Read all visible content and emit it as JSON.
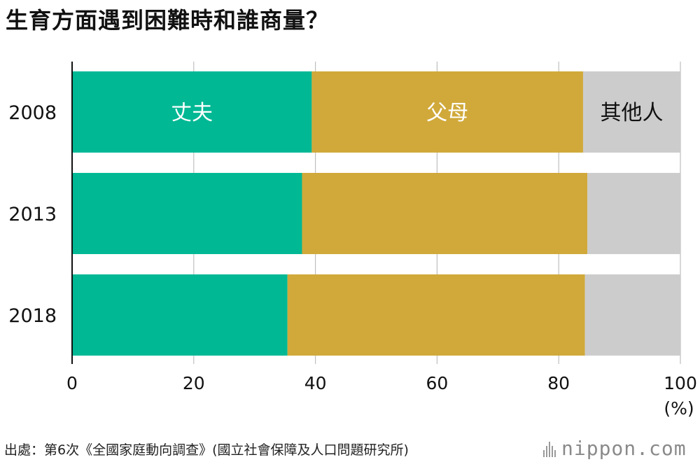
{
  "title": "生育方面遇到困難時和誰商量？",
  "source": "出處：第6次《全國家庭動向調查》(國立社會保障及人口問題研究所)",
  "brand": "nippon.com",
  "colors": {
    "husband": "#00b894",
    "parents": "#d0a93a",
    "others": "#cccccc",
    "grid": "#bfbfbf",
    "axis": "#111111"
  },
  "chart_data": {
    "type": "bar",
    "orientation": "horizontal",
    "stacked": true,
    "categories": [
      "2008",
      "2013",
      "2018"
    ],
    "series": [
      {
        "name": "丈夫",
        "values": [
          39.4,
          37.8,
          35.4
        ]
      },
      {
        "name": "父母",
        "values": [
          44.6,
          46.9,
          48.9
        ]
      },
      {
        "name": "其他人",
        "values": [
          16.0,
          15.3,
          15.7
        ]
      }
    ],
    "xlim": [
      0,
      100
    ],
    "xticks": [
      0,
      20,
      40,
      60,
      80,
      100
    ],
    "xunit": "(%)",
    "grid": true,
    "legend": "inline labels on the 2008 bar"
  }
}
